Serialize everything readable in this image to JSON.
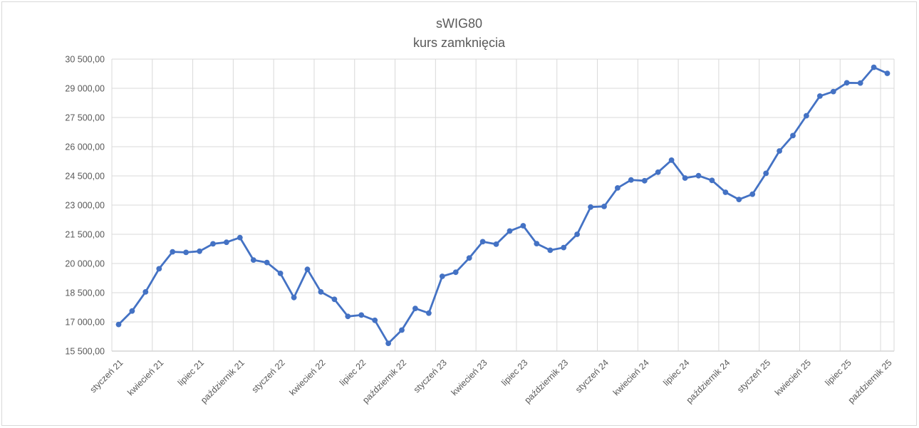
{
  "chart": {
    "title_line1": "sWIG80",
    "title_line2": "kurs zamknięcia"
  },
  "chart_data": {
    "type": "line",
    "title": "sWIG80",
    "subtitle": "kurs zamknięcia",
    "x_start": "styczeń 21",
    "x_interval_months": 1,
    "x_tick_every": 3,
    "x_tick_labels": [
      "styczeń 21",
      "kwiecień 21",
      "lipiec 21",
      "październik 21",
      "styczeń 22",
      "kwiecień 22",
      "lipiec 22",
      "październik 22",
      "styczeń 23",
      "kwiecień 23",
      "lipiec 23",
      "październik 23",
      "styczeń 24",
      "kwiecień 24",
      "lipiec 24",
      "październik 24",
      "styczeń 25",
      "kwiecień 25",
      "lipiec 25",
      "październik 25"
    ],
    "y_ticks": [
      15500,
      17000,
      18500,
      20000,
      21500,
      23000,
      24500,
      26000,
      27500,
      29000,
      30500
    ],
    "y_tick_labels": [
      "15 500,00",
      "17 000,00",
      "18 500,00",
      "20 000,00",
      "21 500,00",
      "23 000,00",
      "24 500,00",
      "26 000,00",
      "27 500,00",
      "29 000,00",
      "30 500,00"
    ],
    "ylim": [
      15500,
      30500
    ],
    "grid": true,
    "legend": "none",
    "marker": "circle",
    "line_color": "#4472C4",
    "gridline_color": "#d9d9d9",
    "axis_line_color": "#bfbfbf",
    "text_color": "#595959",
    "series": [
      {
        "name": "kurs zamknięcia",
        "values": [
          16870,
          17560,
          18540,
          19730,
          20600,
          20570,
          20630,
          21010,
          21090,
          21330,
          20180,
          20050,
          19490,
          18250,
          19700,
          18540,
          18160,
          17280,
          17350,
          17080,
          15900,
          16580,
          17690,
          17450,
          19340,
          19550,
          20280,
          21120,
          20990,
          21670,
          21940,
          21020,
          20680,
          20820,
          21500,
          22900,
          22930,
          23880,
          24290,
          24250,
          24690,
          25310,
          24390,
          24510,
          24270,
          23660,
          23290,
          23560,
          24630,
          25780,
          26570,
          27590,
          28600,
          28830,
          29280,
          29270,
          30080,
          29770
        ]
      }
    ]
  }
}
